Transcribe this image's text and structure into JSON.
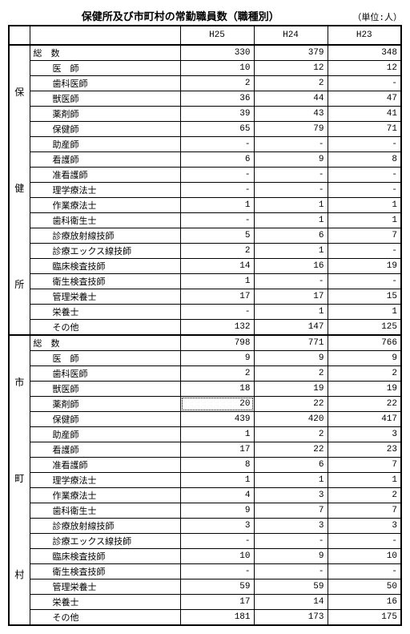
{
  "title": "保健所及び市町村の常勤職員数（職種別）",
  "unit": "（単位:人）",
  "columns": [
    "H25",
    "H24",
    "H23"
  ],
  "sections": [
    {
      "vlabel": "保\n健\n所",
      "total_label": "総　数",
      "total": [
        "330",
        "379",
        "348"
      ],
      "rows": [
        {
          "label": "医　師",
          "v": [
            "10",
            "12",
            "12"
          ]
        },
        {
          "label": "歯科医師",
          "v": [
            "2",
            "2",
            " - "
          ]
        },
        {
          "label": "獣医師",
          "v": [
            "36",
            "44",
            "47"
          ]
        },
        {
          "label": "薬剤師",
          "v": [
            "39",
            "43",
            "41"
          ]
        },
        {
          "label": "保健師",
          "v": [
            "65",
            "79",
            "71"
          ]
        },
        {
          "label": "助産師",
          "v": [
            " - ",
            " - ",
            " - "
          ]
        },
        {
          "label": "看護師",
          "v": [
            "6",
            "9",
            "8"
          ]
        },
        {
          "label": "准看護師",
          "v": [
            " - ",
            " - ",
            " - "
          ]
        },
        {
          "label": "理学療法士",
          "v": [
            " - ",
            " - ",
            " - "
          ]
        },
        {
          "label": "作業療法士",
          "v": [
            "1",
            "1",
            "1"
          ]
        },
        {
          "label": "歯科衛生士",
          "v": [
            " - ",
            "1",
            "1"
          ]
        },
        {
          "label": "診療放射線技師",
          "v": [
            "5",
            "6",
            "7"
          ]
        },
        {
          "label": "診療エックス線技師",
          "v": [
            "2",
            "1",
            " - "
          ]
        },
        {
          "label": "臨床検査技師",
          "v": [
            "14",
            "16",
            "19"
          ]
        },
        {
          "label": "衛生検査技師",
          "v": [
            "1",
            " - ",
            " - "
          ]
        },
        {
          "label": "管理栄養士",
          "v": [
            "17",
            "17",
            "15"
          ]
        },
        {
          "label": "栄養士",
          "v": [
            " - ",
            "1",
            "1"
          ]
        },
        {
          "label": "その他",
          "v": [
            "132",
            "147",
            "125"
          ]
        }
      ]
    },
    {
      "vlabel": "市\n町\n村",
      "total_label": "総　数",
      "total": [
        "798",
        "771",
        "766"
      ],
      "rows": [
        {
          "label": "医　師",
          "v": [
            "9",
            "9",
            "9"
          ]
        },
        {
          "label": "歯科医師",
          "v": [
            "2",
            "2",
            "2"
          ]
        },
        {
          "label": "獣医師",
          "v": [
            "18",
            "19",
            "19"
          ]
        },
        {
          "label": "薬剤師",
          "v": [
            "20",
            "22",
            "22"
          ],
          "sel": 0
        },
        {
          "label": "保健師",
          "v": [
            "439",
            "420",
            "417"
          ]
        },
        {
          "label": "助産師",
          "v": [
            "1",
            "2",
            "3"
          ]
        },
        {
          "label": "看護師",
          "v": [
            "17",
            "22",
            "23"
          ]
        },
        {
          "label": "准看護師",
          "v": [
            "8",
            "6",
            "7"
          ]
        },
        {
          "label": "理学療法士",
          "v": [
            "1",
            "1",
            "1"
          ]
        },
        {
          "label": "作業療法士",
          "v": [
            "4",
            "3",
            "2"
          ]
        },
        {
          "label": "歯科衛生士",
          "v": [
            "9",
            "7",
            "7"
          ]
        },
        {
          "label": "診療放射線技師",
          "v": [
            "3",
            "3",
            "3"
          ]
        },
        {
          "label": "診療エックス線技師",
          "v": [
            " - ",
            " - ",
            " - "
          ]
        },
        {
          "label": "臨床検査技師",
          "v": [
            "10",
            "9",
            "10"
          ]
        },
        {
          "label": "衛生検査技師",
          "v": [
            " - ",
            " - ",
            " - "
          ]
        },
        {
          "label": "管理栄養士",
          "v": [
            "59",
            "59",
            "50"
          ]
        },
        {
          "label": "栄養士",
          "v": [
            "17",
            "14",
            "16"
          ]
        },
        {
          "label": "その他",
          "v": [
            "181",
            "173",
            "175"
          ]
        }
      ]
    }
  ]
}
